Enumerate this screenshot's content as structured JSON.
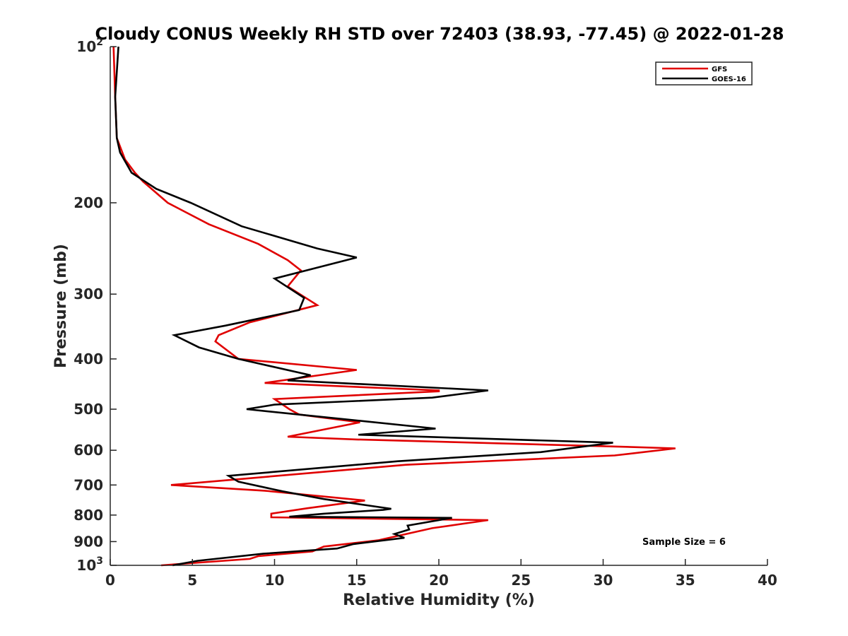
{
  "chart_data": {
    "type": "line",
    "title": "Cloudy CONUS Weekly RH STD over 72403 (38.93, -77.45) @ 2022-01-28",
    "xlabel": "Relative Humidity (%)",
    "ylabel": "Pressure (mb)",
    "xlim": [
      0,
      40
    ],
    "ylim": [
      100,
      1000
    ],
    "yscale": "log",
    "y_reversed": true,
    "x_ticks": [
      "0",
      "5",
      "10",
      "15",
      "20",
      "25",
      "30",
      "35",
      "40"
    ],
    "y_ticks": [
      {
        "value": 100,
        "base": "10",
        "exp": "2"
      },
      {
        "value": 200,
        "label": "200"
      },
      {
        "value": 300,
        "label": "300"
      },
      {
        "value": 400,
        "label": "400"
      },
      {
        "value": 500,
        "label": "500"
      },
      {
        "value": 600,
        "label": "600"
      },
      {
        "value": 700,
        "label": "700"
      },
      {
        "value": 800,
        "label": "800"
      },
      {
        "value": 900,
        "label": "900"
      },
      {
        "value": 1000,
        "base": "10",
        "exp": "3"
      }
    ],
    "legend_position": "top-right",
    "grid": false,
    "annotation": "Sample Size = 6",
    "series": [
      {
        "name": "GFS",
        "color": "#e00000",
        "points": [
          [
            0.2,
            100
          ],
          [
            0.3,
            125
          ],
          [
            0.4,
            150
          ],
          [
            0.9,
            165
          ],
          [
            1.5,
            175
          ],
          [
            2.0,
            182
          ],
          [
            3.5,
            200
          ],
          [
            6.0,
            220
          ],
          [
            9.0,
            240
          ],
          [
            10.8,
            258
          ],
          [
            11.6,
            270
          ],
          [
            10.8,
            290
          ],
          [
            12.6,
            315
          ],
          [
            8.5,
            340
          ],
          [
            6.6,
            360
          ],
          [
            6.4,
            370
          ],
          [
            7.8,
            400
          ],
          [
            15.0,
            420
          ],
          [
            9.4,
            445
          ],
          [
            20.0,
            460
          ],
          [
            20.0,
            462
          ],
          [
            10.0,
            478
          ],
          [
            10.9,
            500
          ],
          [
            11.5,
            512
          ],
          [
            15.2,
            530
          ],
          [
            10.8,
            565
          ],
          [
            15.0,
            572
          ],
          [
            30.6,
            590
          ],
          [
            34.4,
            595
          ],
          [
            30.7,
            614
          ],
          [
            18.0,
            640
          ],
          [
            3.7,
            700
          ],
          [
            9.4,
            718
          ],
          [
            15.5,
            750
          ],
          [
            12.0,
            776
          ],
          [
            9.8,
            795
          ],
          [
            9.8,
            808
          ],
          [
            12.3,
            810
          ],
          [
            23.0,
            818
          ],
          [
            19.6,
            848
          ],
          [
            16.3,
            895
          ],
          [
            13.0,
            920
          ],
          [
            12.3,
            940
          ],
          [
            9.0,
            960
          ],
          [
            8.5,
            972
          ],
          [
            3.1,
            1000
          ]
        ]
      },
      {
        "name": "GOES-16",
        "color": "#000000",
        "points": [
          [
            0.5,
            100
          ],
          [
            0.3,
            125
          ],
          [
            0.4,
            150
          ],
          [
            0.6,
            160
          ],
          [
            1.3,
            175
          ],
          [
            2.8,
            188
          ],
          [
            4.9,
            200
          ],
          [
            8.0,
            222
          ],
          [
            12.6,
            245
          ],
          [
            15.0,
            255
          ],
          [
            10.0,
            280
          ],
          [
            11.8,
            305
          ],
          [
            11.5,
            322
          ],
          [
            7.0,
            345
          ],
          [
            3.9,
            360
          ],
          [
            5.4,
            380
          ],
          [
            7.8,
            400
          ],
          [
            12.2,
            430
          ],
          [
            10.8,
            440
          ],
          [
            23.0,
            460
          ],
          [
            19.6,
            475
          ],
          [
            10.0,
            490
          ],
          [
            8.3,
            500
          ],
          [
            19.8,
            545
          ],
          [
            15.1,
            560
          ],
          [
            30.6,
            580
          ],
          [
            26.2,
            605
          ],
          [
            17.5,
            630
          ],
          [
            7.2,
            672
          ],
          [
            7.8,
            690
          ],
          [
            10.5,
            720
          ],
          [
            13.0,
            745
          ],
          [
            17.1,
            778
          ],
          [
            16.6,
            782
          ],
          [
            13.0,
            795
          ],
          [
            10.9,
            806
          ],
          [
            20.8,
            810
          ],
          [
            18.1,
            838
          ],
          [
            18.2,
            853
          ],
          [
            17.3,
            870
          ],
          [
            17.9,
            885
          ],
          [
            14.8,
            910
          ],
          [
            13.8,
            928
          ],
          [
            9.3,
            950
          ],
          [
            5.3,
            980
          ],
          [
            3.8,
            1000
          ]
        ]
      }
    ]
  }
}
